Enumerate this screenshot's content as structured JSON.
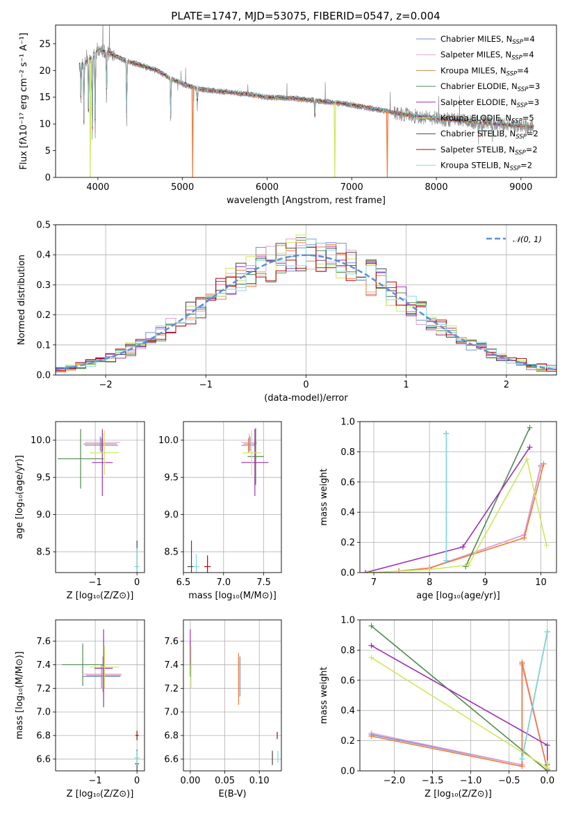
{
  "figure": {
    "title": "PLATE=1747, MJD=53075, FIBERID=0547, z=0.004"
  },
  "colors": {
    "Chabrier MILES": "#6f8fd6",
    "Salpeter MILES": "#e6a0cf",
    "Kroupa MILES": "#c09035",
    "Chabrier ELODIE": "#4f8a52",
    "Salpeter ELODIE": "#9b2fb0",
    "Kroupa ELODIE": "#cde85a",
    "Chabrier STELIB": "#444444",
    "Salpeter STELIB": "#b00000",
    "Kroupa STELIB": "#7fdbe0",
    "orange": "#f07a3a",
    "gray": "#888888",
    "normal": "#5b8fd9"
  },
  "chart_data": [
    {
      "id": "spectrum",
      "type": "line",
      "xlabel": "wavelength [Angstrom, rest frame]",
      "ylabel": "Flux [fλ10⁻¹⁷ erg cm⁻² s⁻¹ A⁻¹]",
      "xlim": [
        3500,
        9420
      ],
      "ylim": [
        0,
        28.5
      ],
      "xticks": [
        4000,
        5000,
        6000,
        7000,
        8000,
        9000
      ],
      "yticks": [
        0,
        5,
        10,
        15,
        20,
        25
      ],
      "grid": false,
      "legend_position": "upper-right",
      "legend": [
        {
          "label": "Chabrier MILES, N",
          "sub": "SSP",
          "suffix": "=4",
          "color_key": "Chabrier MILES"
        },
        {
          "label": "Salpeter MILES, N",
          "sub": "SSP",
          "suffix": "=4",
          "color_key": "Salpeter MILES"
        },
        {
          "label": "Kroupa MILES, N",
          "sub": "SSP",
          "suffix": "=4",
          "color_key": "Kroupa MILES"
        },
        {
          "label": "Chabrier ELODIE, N",
          "sub": "SSP",
          "suffix": "=3",
          "color_key": "Chabrier ELODIE"
        },
        {
          "label": "Salpeter ELODIE, N",
          "sub": "SSP",
          "suffix": "=3",
          "color_key": "Salpeter ELODIE"
        },
        {
          "label": "Kroupa ELODIE, N",
          "sub": "SSP",
          "suffix": "=5",
          "color_key": "Kroupa ELODIE"
        },
        {
          "label": "Chabrier STELIB, N",
          "sub": "SSP",
          "suffix": "=2",
          "color_key": "Chabrier STELIB"
        },
        {
          "label": "Salpeter STELIB, N",
          "sub": "SSP",
          "suffix": "=2",
          "color_key": "Salpeter STELIB"
        },
        {
          "label": "Kroupa STELIB, N",
          "sub": "SSP",
          "suffix": "=2",
          "color_key": "Kroupa STELIB"
        }
      ],
      "continuum": [
        [
          3780,
          21
        ],
        [
          3850,
          21.5
        ],
        [
          3950,
          22.5
        ],
        [
          4000,
          24
        ],
        [
          4100,
          23.5
        ],
        [
          4300,
          22
        ],
        [
          4500,
          21
        ],
        [
          4700,
          20
        ],
        [
          4860,
          18.5
        ],
        [
          5000,
          17.5
        ],
        [
          5200,
          16.5
        ],
        [
          5500,
          16
        ],
        [
          5800,
          15.5
        ],
        [
          6000,
          15
        ],
        [
          6300,
          14.8
        ],
        [
          6600,
          14.3
        ],
        [
          6900,
          13.8
        ],
        [
          7200,
          13
        ],
        [
          7600,
          11.8
        ],
        [
          8000,
          11
        ],
        [
          8500,
          10.3
        ],
        [
          9000,
          9.6
        ],
        [
          9150,
          9.4
        ]
      ],
      "absorption_lines": [
        {
          "x": 3800,
          "depth": 8
        },
        {
          "x": 3835,
          "depth": 12
        },
        {
          "x": 3889,
          "depth": 10
        },
        {
          "x": 3934,
          "depth": 17
        },
        {
          "x": 3968,
          "depth": 16
        },
        {
          "x": 4102,
          "depth": 9
        },
        {
          "x": 4340,
          "depth": 13
        },
        {
          "x": 4861,
          "depth": 8
        },
        {
          "x": 5175,
          "depth": 4
        },
        {
          "x": 6563,
          "depth": 3
        },
        {
          "x": 8498,
          "depth": 3
        },
        {
          "x": 8542,
          "depth": 3
        },
        {
          "x": 8662,
          "depth": 3
        }
      ],
      "masked_drops": [
        {
          "x": 3910,
          "color_key": "Kroupa ELODIE"
        },
        {
          "x": 5120,
          "color_key": "orange"
        },
        {
          "x": 6800,
          "color_key": "Kroupa ELODIE"
        },
        {
          "x": 7420,
          "color_key": "orange"
        }
      ]
    },
    {
      "id": "residual_histogram",
      "type": "line",
      "xlabel": "(data-model)/error",
      "ylabel": "Normed distribution",
      "xlim": [
        -2.5,
        2.5
      ],
      "ylim": [
        0,
        0.5
      ],
      "xticks": [
        -2,
        -1,
        0,
        1,
        2
      ],
      "yticks": [
        0,
        0.1,
        0.2,
        0.3,
        0.4,
        0.5
      ],
      "grid": true,
      "legend_position": "upper-right",
      "gaussian": {
        "label": "𝒩(0, 1)",
        "mean": 0,
        "sigma": 1
      },
      "bin_width": 0.1
    },
    {
      "id": "age_vs_Z",
      "type": "scatter",
      "xlabel": "Z [log₁₀(Z/Z⊙)]",
      "ylabel": "age  [log₁₀(age/yr)]",
      "xlim": [
        -1.95,
        0.18
      ],
      "ylim": [
        8.22,
        10.25
      ],
      "xticks": [
        -1,
        0
      ],
      "yticks": [
        8.5,
        9.0,
        9.5,
        10.0
      ],
      "grid": true,
      "points": [
        {
          "x": -0.88,
          "y": 9.95,
          "xerr": 0.4,
          "yerr": 0.1,
          "color_key": "Chabrier MILES"
        },
        {
          "x": -0.82,
          "y": 9.97,
          "xerr": 0.42,
          "yerr": 0.12,
          "color_key": "Salpeter MILES"
        },
        {
          "x": -0.85,
          "y": 9.93,
          "xerr": 0.4,
          "yerr": 0.1,
          "color_key": "orange"
        },
        {
          "x": -1.35,
          "y": 9.75,
          "xerr": 0.55,
          "yerr": 0.4,
          "color_key": "Chabrier ELODIE"
        },
        {
          "x": -0.83,
          "y": 9.7,
          "xerr": 0.25,
          "yerr": 0.45,
          "color_key": "Salpeter ELODIE"
        },
        {
          "x": -0.78,
          "y": 9.83,
          "xerr": 0.35,
          "yerr": 0.3,
          "color_key": "Kroupa ELODIE"
        },
        {
          "x": 0.0,
          "y": 8.3,
          "xerr": 0.04,
          "yerr": 0.35,
          "color_key": "Chabrier STELIB"
        },
        {
          "x": 0.0,
          "y": 8.3,
          "xerr": 0.06,
          "yerr": 0.25,
          "color_key": "Kroupa STELIB"
        }
      ]
    },
    {
      "id": "age_vs_mass",
      "type": "scatter",
      "xlabel": "mass [log₁₀(M/M⊙)]",
      "ylabel": "",
      "xlim": [
        6.5,
        7.72
      ],
      "ylim": [
        8.22,
        10.25
      ],
      "xticks": [
        6.5,
        7.0,
        7.5
      ],
      "yticks": [
        8.5,
        9.0,
        9.5,
        10.0
      ],
      "grid": true,
      "points": [
        {
          "x": 7.33,
          "y": 9.95,
          "xerr": 0.08,
          "yerr": 0.1,
          "color_key": "Chabrier MILES"
        },
        {
          "x": 7.32,
          "y": 9.97,
          "xerr": 0.1,
          "yerr": 0.12,
          "color_key": "Salpeter MILES"
        },
        {
          "x": 7.31,
          "y": 9.93,
          "xerr": 0.09,
          "yerr": 0.1,
          "color_key": "orange"
        },
        {
          "x": 7.4,
          "y": 9.78,
          "xerr": 0.1,
          "yerr": 0.38,
          "color_key": "Chabrier ELODIE"
        },
        {
          "x": 7.39,
          "y": 9.7,
          "xerr": 0.17,
          "yerr": 0.45,
          "color_key": "Salpeter ELODIE"
        },
        {
          "x": 7.35,
          "y": 9.83,
          "xerr": 0.12,
          "yerr": 0.3,
          "color_key": "Kroupa ELODIE"
        },
        {
          "x": 6.6,
          "y": 8.3,
          "xerr": 0.05,
          "yerr": 0.35,
          "color_key": "Chabrier STELIB"
        },
        {
          "x": 6.8,
          "y": 8.3,
          "xerr": 0.04,
          "yerr": 0.15,
          "color_key": "Salpeter STELIB"
        },
        {
          "x": 6.66,
          "y": 8.3,
          "xerr": 0.04,
          "yerr": 0.17,
          "color_key": "Kroupa STELIB"
        }
      ]
    },
    {
      "id": "mass_weight_vs_age",
      "type": "line",
      "xlabel": "age  [log₁₀(age/yr)]",
      "ylabel": "mass weight",
      "xlim": [
        6.75,
        10.28
      ],
      "ylim": [
        0,
        1.0
      ],
      "xticks": [
        7,
        8,
        9,
        10
      ],
      "yticks": [
        0.0,
        0.2,
        0.4,
        0.6,
        0.8,
        1.0
      ],
      "grid": true,
      "series": [
        {
          "color_key": "Chabrier MILES",
          "x": [
            7.45,
            8.0,
            9.7,
            10.0
          ],
          "y": [
            0.01,
            0.03,
            0.25,
            0.71
          ]
        },
        {
          "color_key": "Salpeter MILES",
          "x": [
            7.45,
            8.0,
            9.7,
            10.0
          ],
          "y": [
            0.01,
            0.03,
            0.25,
            0.7
          ]
        },
        {
          "color_key": "orange",
          "x": [
            7.45,
            8.0,
            9.7,
            10.05
          ],
          "y": [
            0.01,
            0.03,
            0.23,
            0.72
          ]
        },
        {
          "color_key": "Chabrier ELODIE",
          "x": [
            8.65,
            9.8
          ],
          "y": [
            0.04,
            0.96
          ]
        },
        {
          "color_key": "Salpeter ELODIE",
          "x": [
            6.85,
            8.6,
            9.8
          ],
          "y": [
            0.0,
            0.17,
            0.83
          ]
        },
        {
          "color_key": "Kroupa ELODIE",
          "x": [
            6.9,
            8.0,
            8.7,
            9.75,
            10.1
          ],
          "y": [
            0.0,
            0.02,
            0.05,
            0.75,
            0.18
          ]
        },
        {
          "color_key": "Chabrier STELIB",
          "x": [
            8.3,
            8.3
          ],
          "y": [
            0.08,
            0.92
          ]
        },
        {
          "color_key": "Kroupa STELIB",
          "x": [
            8.3,
            8.3
          ],
          "y": [
            0.08,
            0.92
          ]
        }
      ]
    },
    {
      "id": "mass_vs_Z",
      "type": "scatter",
      "xlabel": "Z [log₁₀(Z/Z⊙)]",
      "ylabel": "mass [log₁₀(M/M⊙)]",
      "xlim": [
        -1.95,
        0.18
      ],
      "ylim": [
        6.5,
        7.78
      ],
      "xticks": [
        -1,
        0
      ],
      "yticks": [
        6.6,
        6.8,
        7.0,
        7.2,
        7.4,
        7.6
      ],
      "grid": true,
      "points": [
        {
          "x": -0.85,
          "y": 7.3,
          "xerr": 0.45,
          "yerr": 0.1,
          "color_key": "Chabrier MILES"
        },
        {
          "x": -0.82,
          "y": 7.32,
          "xerr": 0.45,
          "yerr": 0.15,
          "color_key": "Salpeter MILES"
        },
        {
          "x": -0.8,
          "y": 7.31,
          "xerr": 0.42,
          "yerr": 0.18,
          "color_key": "orange"
        },
        {
          "x": -1.3,
          "y": 7.4,
          "xerr": 0.5,
          "yerr": 0.18,
          "color_key": "Chabrier ELODIE"
        },
        {
          "x": -0.8,
          "y": 7.37,
          "xerr": 0.22,
          "yerr": 0.33,
          "color_key": "Salpeter ELODIE"
        },
        {
          "x": -0.78,
          "y": 7.38,
          "xerr": 0.35,
          "yerr": 0.18,
          "color_key": "Kroupa ELODIE"
        },
        {
          "x": 0.0,
          "y": 6.56,
          "xerr": 0.05,
          "yerr": 0.12,
          "color_key": "Chabrier STELIB"
        },
        {
          "x": 0.0,
          "y": 6.8,
          "xerr": 0.04,
          "yerr": 0.04,
          "color_key": "Salpeter STELIB"
        },
        {
          "x": 0.0,
          "y": 6.61,
          "xerr": 0.06,
          "yerr": 0.06,
          "color_key": "Kroupa STELIB"
        }
      ]
    },
    {
      "id": "mass_vs_ebv",
      "type": "scatter",
      "xlabel": "E(B-V)",
      "ylabel": "",
      "xlim": [
        -0.01,
        0.132
      ],
      "ylim": [
        6.5,
        7.78
      ],
      "xticks": [
        0.0,
        0.05,
        0.1
      ],
      "yticks": [
        6.6,
        6.8,
        7.0,
        7.2,
        7.4,
        7.6
      ],
      "grid": true,
      "points": [
        {
          "x": 0.072,
          "y": 7.3,
          "xerr": 0,
          "yerr": 0.17,
          "color_key": "Chabrier MILES"
        },
        {
          "x": 0.07,
          "y": 7.32,
          "xerr": 0,
          "yerr": 0.15,
          "color_key": "Salpeter MILES"
        },
        {
          "x": 0.07,
          "y": 7.28,
          "xerr": 0,
          "yerr": 0.22,
          "color_key": "orange"
        },
        {
          "x": 0.0,
          "y": 7.45,
          "xerr": 0,
          "yerr": 0.15,
          "color_key": "Chabrier ELODIE"
        },
        {
          "x": 0.0,
          "y": 7.55,
          "xerr": 0,
          "yerr": 0.15,
          "color_key": "Salpeter ELODIE"
        },
        {
          "x": 0.001,
          "y": 7.38,
          "xerr": 0,
          "yerr": 0.18,
          "color_key": "Kroupa ELODIE"
        },
        {
          "x": 0.119,
          "y": 6.61,
          "xerr": 0,
          "yerr": 0.06,
          "color_key": "Chabrier STELIB"
        },
        {
          "x": 0.126,
          "y": 6.8,
          "xerr": 0,
          "yerr": 0.03,
          "color_key": "Salpeter STELIB"
        },
        {
          "x": 0.127,
          "y": 6.62,
          "xerr": 0,
          "yerr": 0.05,
          "color_key": "Kroupa STELIB"
        }
      ]
    },
    {
      "id": "mass_weight_vs_Z",
      "type": "line",
      "xlabel": "Z [log₁₀(Z/Z⊙)]",
      "ylabel": "mass weight",
      "xlim": [
        -2.45,
        0.12
      ],
      "ylim": [
        0,
        1.0
      ],
      "xticks": [
        -2.0,
        -1.5,
        -1.0,
        -0.5,
        0.0
      ],
      "yticks": [
        0.0,
        0.2,
        0.4,
        0.6,
        0.8,
        1.0
      ],
      "grid": true,
      "series": [
        {
          "color_key": "Chabrier MILES",
          "x": [
            -2.3,
            -0.33,
            -0.33,
            0.0
          ],
          "y": [
            0.24,
            0.04,
            0.71,
            0.01
          ]
        },
        {
          "color_key": "Salpeter MILES",
          "x": [
            -2.3,
            -0.33,
            -0.33,
            0.0
          ],
          "y": [
            0.25,
            0.04,
            0.7,
            0.01
          ]
        },
        {
          "color_key": "orange",
          "x": [
            -2.3,
            -0.33,
            -0.33,
            0.0
          ],
          "y": [
            0.23,
            0.03,
            0.72,
            0.01
          ]
        },
        {
          "color_key": "Chabrier ELODIE",
          "x": [
            -2.3,
            0.0,
            0.0
          ],
          "y": [
            0.96,
            0.0,
            0.04
          ]
        },
        {
          "color_key": "Salpeter ELODIE",
          "x": [
            -2.3,
            0.0,
            0.0
          ],
          "y": [
            0.83,
            0.17,
            0.0
          ]
        },
        {
          "color_key": "Kroupa ELODIE",
          "x": [
            -2.3,
            0.0,
            0.0
          ],
          "y": [
            0.75,
            0.02,
            0.05
          ]
        },
        {
          "color_key": "Chabrier STELIB",
          "x": [
            -0.33,
            0.0
          ],
          "y": [
            0.08,
            0.92
          ]
        },
        {
          "color_key": "Kroupa STELIB",
          "x": [
            -0.33,
            0.0
          ],
          "y": [
            0.08,
            0.92
          ]
        }
      ]
    }
  ]
}
